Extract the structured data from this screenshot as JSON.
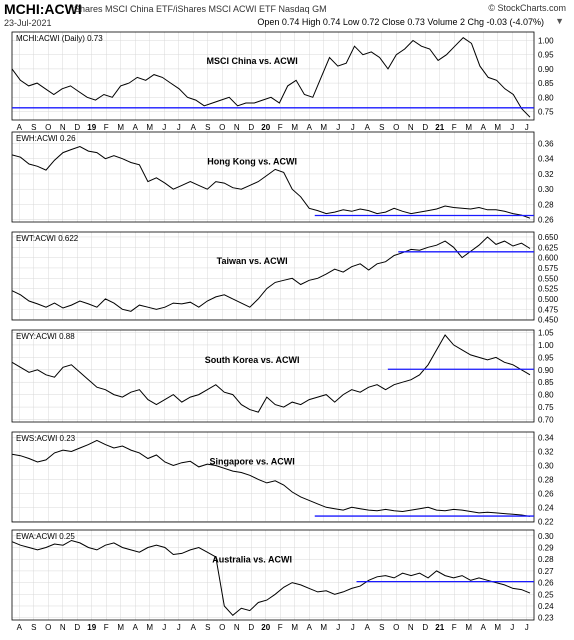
{
  "header": {
    "symbol": "MCHI:ACWI",
    "description": "iShares MSCI China ETF/iShares MSCI ACWI ETF  Nasdaq GM",
    "date": "23-Jul-2021",
    "ohlc": "Open 0.74 High 0.74 Low 0.72 Close 0.73 Volume 2 Chg -0.03 (-4.07%)",
    "brand": "© StockCharts.com",
    "dropdown_icon": "chevron-down-icon",
    "brand_icon": "stockcharts-logo-icon"
  },
  "colors": {
    "price": "#000000",
    "support": "#1a1aff",
    "grid": "#d8d8d8",
    "frame": "#000000"
  },
  "x_axis": {
    "labels": [
      "A",
      "S",
      "O",
      "N",
      "D",
      "19",
      "F",
      "M",
      "A",
      "M",
      "J",
      "J",
      "A",
      "S",
      "O",
      "N",
      "D",
      "20",
      "F",
      "M",
      "A",
      "M",
      "J",
      "J",
      "A",
      "S",
      "O",
      "N",
      "D",
      "21",
      "F",
      "M",
      "A",
      "M",
      "J",
      "J"
    ],
    "bold_labels": [
      "19",
      "20",
      "21"
    ]
  },
  "chart_data": [
    {
      "type": "line",
      "panel_label": "MCHI:ACWI (Daily) 0.73",
      "title": "MSCI China vs. ACWI",
      "ylim": [
        0.72,
        1.03
      ],
      "y_ticks": [
        "1.00",
        "0.95",
        "0.90",
        "0.85",
        "0.80",
        "0.75"
      ],
      "y_tick_values": [
        1.0,
        0.95,
        0.9,
        0.85,
        0.8,
        0.75
      ],
      "series": [
        {
          "values": [
            0.9,
            0.86,
            0.84,
            0.85,
            0.83,
            0.81,
            0.83,
            0.84,
            0.82,
            0.8,
            0.79,
            0.81,
            0.8,
            0.84,
            0.85,
            0.87,
            0.86,
            0.88,
            0.87,
            0.85,
            0.83,
            0.8,
            0.79,
            0.77,
            0.78,
            0.79,
            0.8,
            0.77,
            0.78,
            0.78,
            0.79,
            0.8,
            0.78,
            0.84,
            0.86,
            0.81,
            0.8,
            0.87,
            0.94,
            0.91,
            0.92,
            0.98,
            0.95,
            0.96,
            0.94,
            0.9,
            0.95,
            0.97,
            1.0,
            0.98,
            0.97,
            0.93,
            0.95,
            0.98,
            1.01,
            0.99,
            0.91,
            0.87,
            0.86,
            0.83,
            0.81,
            0.76,
            0.73
          ]
        }
      ],
      "support_line": {
        "y": 0.763,
        "x_start": 0.0,
        "x_end": 1.0
      }
    },
    {
      "type": "line",
      "panel_label": "EWH:ACWI 0.26",
      "title": "Hong Kong vs. ACWI",
      "ylim": [
        0.257,
        0.375
      ],
      "y_ticks": [
        "0.36",
        "0.34",
        "0.32",
        "0.30",
        "0.28",
        "0.26"
      ],
      "y_tick_values": [
        0.36,
        0.34,
        0.32,
        0.3,
        0.28,
        0.26
      ],
      "series": [
        {
          "values": [
            0.345,
            0.342,
            0.333,
            0.33,
            0.325,
            0.338,
            0.348,
            0.352,
            0.356,
            0.35,
            0.348,
            0.34,
            0.344,
            0.34,
            0.335,
            0.332,
            0.31,
            0.315,
            0.308,
            0.3,
            0.305,
            0.31,
            0.305,
            0.3,
            0.31,
            0.308,
            0.302,
            0.3,
            0.305,
            0.31,
            0.318,
            0.326,
            0.322,
            0.3,
            0.29,
            0.275,
            0.272,
            0.268,
            0.27,
            0.273,
            0.271,
            0.274,
            0.272,
            0.268,
            0.27,
            0.275,
            0.271,
            0.268,
            0.27,
            0.272,
            0.274,
            0.278,
            0.276,
            0.275,
            0.274,
            0.276,
            0.273,
            0.273,
            0.271,
            0.268,
            0.266,
            0.262
          ]
        }
      ],
      "support_line": {
        "y": 0.2655,
        "x_start": 0.58,
        "x_end": 1.0
      }
    },
    {
      "type": "line",
      "panel_label": "EWT:ACWI 0.622",
      "title": "Taiwan vs. ACWI",
      "ylim": [
        0.449,
        0.662
      ],
      "y_ticks": [
        "0.650",
        "0.625",
        "0.600",
        "0.575",
        "0.550",
        "0.525",
        "0.500",
        "0.475",
        "0.450"
      ],
      "y_tick_values": [
        0.65,
        0.625,
        0.6,
        0.575,
        0.55,
        0.525,
        0.5,
        0.475,
        0.45
      ],
      "series": [
        {
          "values": [
            0.52,
            0.51,
            0.495,
            0.488,
            0.48,
            0.49,
            0.478,
            0.485,
            0.495,
            0.488,
            0.48,
            0.5,
            0.49,
            0.475,
            0.47,
            0.485,
            0.48,
            0.475,
            0.48,
            0.49,
            0.488,
            0.492,
            0.48,
            0.495,
            0.505,
            0.51,
            0.5,
            0.49,
            0.48,
            0.5,
            0.525,
            0.54,
            0.545,
            0.55,
            0.535,
            0.545,
            0.55,
            0.56,
            0.572,
            0.565,
            0.578,
            0.585,
            0.57,
            0.585,
            0.59,
            0.605,
            0.612,
            0.62,
            0.618,
            0.625,
            0.63,
            0.64,
            0.625,
            0.6,
            0.615,
            0.63,
            0.65,
            0.632,
            0.64,
            0.628,
            0.635,
            0.622
          ]
        }
      ],
      "support_line": {
        "y": 0.614,
        "x_start": 0.74,
        "x_end": 1.0
      }
    },
    {
      "type": "line",
      "panel_label": "EWY:ACWI 0.88",
      "title": "South Korea vs. ACWI",
      "ylim": [
        0.69,
        1.06
      ],
      "y_ticks": [
        "1.05",
        "1.00",
        "0.95",
        "0.90",
        "0.85",
        "0.80",
        "0.75",
        "0.70"
      ],
      "y_tick_values": [
        1.05,
        1.0,
        0.95,
        0.9,
        0.85,
        0.8,
        0.75,
        0.7
      ],
      "series": [
        {
          "values": [
            0.93,
            0.91,
            0.89,
            0.9,
            0.88,
            0.87,
            0.91,
            0.92,
            0.89,
            0.86,
            0.83,
            0.82,
            0.8,
            0.79,
            0.81,
            0.82,
            0.78,
            0.76,
            0.78,
            0.8,
            0.77,
            0.79,
            0.8,
            0.82,
            0.84,
            0.81,
            0.8,
            0.76,
            0.74,
            0.73,
            0.79,
            0.76,
            0.75,
            0.77,
            0.76,
            0.78,
            0.79,
            0.8,
            0.77,
            0.8,
            0.82,
            0.81,
            0.83,
            0.84,
            0.82,
            0.84,
            0.85,
            0.86,
            0.88,
            0.92,
            0.98,
            1.04,
            1.0,
            0.98,
            0.96,
            0.95,
            0.94,
            0.95,
            0.93,
            0.92,
            0.9,
            0.88
          ]
        }
      ],
      "support_line": {
        "y": 0.902,
        "x_start": 0.72,
        "x_end": 1.0
      }
    },
    {
      "type": "line",
      "panel_label": "EWS:ACWI 0.23",
      "title": "Singapore vs. ACWI",
      "ylim": [
        0.219,
        0.348
      ],
      "y_ticks": [
        "0.34",
        "0.32",
        "0.30",
        "0.28",
        "0.26",
        "0.24",
        "0.22"
      ],
      "y_tick_values": [
        0.34,
        0.32,
        0.3,
        0.28,
        0.26,
        0.24,
        0.22
      ],
      "series": [
        {
          "values": [
            0.316,
            0.314,
            0.31,
            0.305,
            0.308,
            0.318,
            0.322,
            0.32,
            0.325,
            0.33,
            0.336,
            0.33,
            0.325,
            0.328,
            0.322,
            0.318,
            0.31,
            0.315,
            0.305,
            0.3,
            0.304,
            0.306,
            0.298,
            0.302,
            0.3,
            0.296,
            0.292,
            0.29,
            0.286,
            0.28,
            0.275,
            0.278,
            0.272,
            0.262,
            0.255,
            0.25,
            0.245,
            0.24,
            0.238,
            0.236,
            0.24,
            0.238,
            0.236,
            0.235,
            0.237,
            0.235,
            0.234,
            0.236,
            0.238,
            0.24,
            0.236,
            0.235,
            0.237,
            0.236,
            0.234,
            0.232,
            0.233,
            0.232,
            0.231,
            0.23,
            0.229,
            0.227
          ]
        }
      ],
      "support_line": {
        "y": 0.2275,
        "x_start": 0.58,
        "x_end": 1.0
      }
    },
    {
      "type": "line",
      "panel_label": "EWA:ACWI 0.25",
      "title": "Australia vs. ACWI",
      "ylim": [
        0.228,
        0.305
      ],
      "y_ticks": [
        "0.30",
        "0.29",
        "0.28",
        "0.27",
        "0.26",
        "0.25",
        "0.24",
        "0.23"
      ],
      "y_tick_values": [
        0.3,
        0.29,
        0.28,
        0.27,
        0.26,
        0.25,
        0.24,
        0.23
      ],
      "series": [
        {
          "values": [
            0.295,
            0.292,
            0.29,
            0.288,
            0.29,
            0.293,
            0.292,
            0.296,
            0.294,
            0.29,
            0.288,
            0.292,
            0.294,
            0.29,
            0.288,
            0.286,
            0.29,
            0.292,
            0.29,
            0.284,
            0.285,
            0.288,
            0.29,
            0.286,
            0.282,
            0.24,
            0.232,
            0.238,
            0.236,
            0.243,
            0.245,
            0.25,
            0.256,
            0.26,
            0.258,
            0.255,
            0.252,
            0.253,
            0.25,
            0.252,
            0.255,
            0.257,
            0.262,
            0.265,
            0.266,
            0.264,
            0.268,
            0.266,
            0.268,
            0.264,
            0.27,
            0.266,
            0.264,
            0.266,
            0.262,
            0.264,
            0.262,
            0.26,
            0.258,
            0.255,
            0.254,
            0.251
          ]
        }
      ],
      "support_line": {
        "y": 0.2608,
        "x_start": 0.66,
        "x_end": 1.0
      }
    }
  ]
}
